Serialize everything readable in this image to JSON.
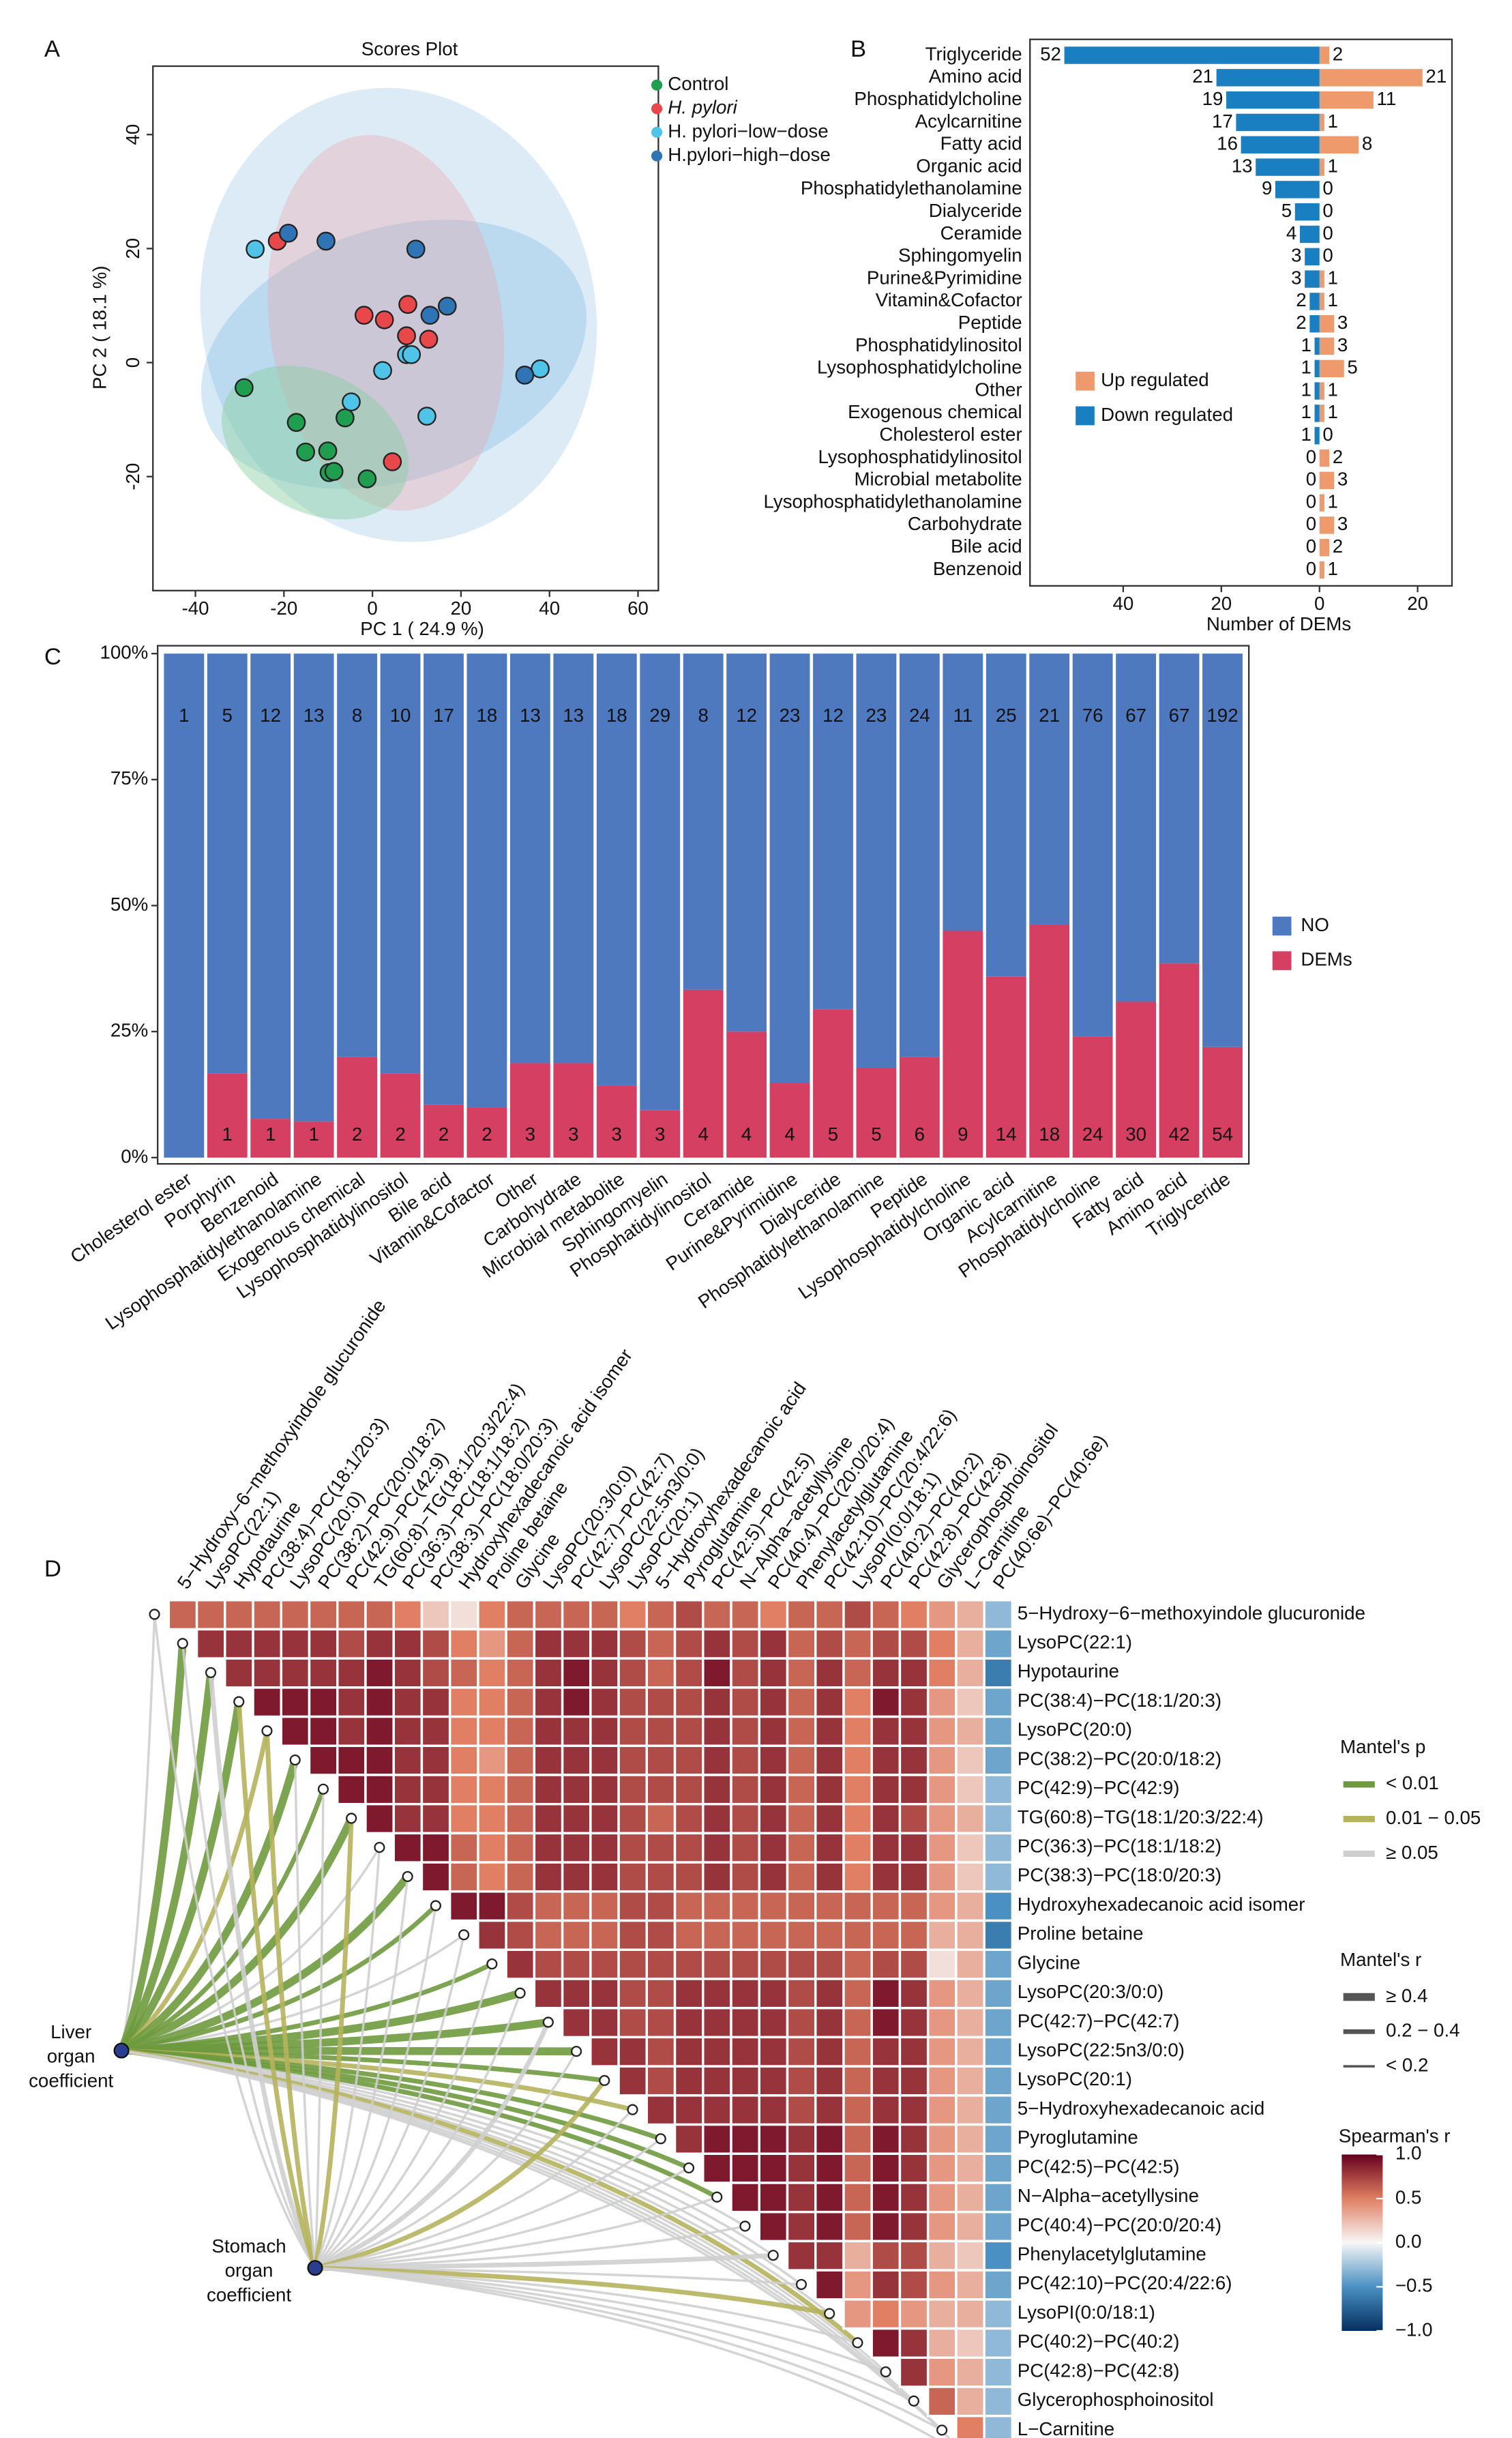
{
  "panel_labels": [
    "A",
    "B",
    "C",
    "D"
  ],
  "chart_data": [
    {
      "type": "scatter",
      "title": "Scores Plot",
      "xlabel": "PC 1 ( 24.9 %)",
      "ylabel": "PC 2 ( 18.1 %)",
      "xlim": [
        -49.6,
        64.6
      ],
      "ylim": [
        -40,
        52
      ],
      "xticks": [
        -40,
        -20,
        0,
        20,
        40,
        60
      ],
      "yticks": [
        -20,
        0,
        20,
        40
      ],
      "series": [
        {
          "name": "Control",
          "color": "#1f9e4f",
          "x": [
            -29,
            -17.2,
            -15.1,
            -10.1,
            -9.8,
            -8.7,
            -6.2,
            -1.2
          ],
          "values": [
            -4.4,
            -10.5,
            -15.7,
            -15.5,
            -19.3,
            -19.1,
            -9.7,
            -20.4
          ]
        },
        {
          "name": "H. pylori",
          "color": "#e8484a",
          "x": [
            -21.5,
            -1.9,
            2.7,
            8.0,
            7.7,
            4.5,
            12.7
          ],
          "values": [
            21.3,
            8.3,
            7.5,
            10.2,
            4.7,
            -17.4,
            4.1
          ]
        },
        {
          "name": "H. pylori−low−dose",
          "color": "#4fc3e8",
          "x": [
            -26.5,
            -4.8,
            2.3,
            7.7,
            8.8,
            12.3,
            37.9
          ],
          "values": [
            19.9,
            -6.9,
            -1.4,
            1.4,
            1.4,
            -9.4,
            -1.1
          ]
        },
        {
          "name": "H.pylori−high−dose",
          "color": "#2f74b5",
          "x": [
            -19.0,
            -10.5,
            9.8,
            13.0,
            16.9,
            34.4
          ],
          "values": [
            22.7,
            21.3,
            19.9,
            8.3,
            9.9,
            -2.2
          ]
        }
      ]
    },
    {
      "type": "bar",
      "orientation": "horizontal",
      "xlabel": "Number of DEMs",
      "categories": [
        "Triglyceride",
        "Amino acid",
        "Phosphatidylcholine",
        "Acylcarnitine",
        "Fatty acid",
        "Organic acid",
        "Phosphatidylethanolamine",
        "Dialyceride",
        "Ceramide",
        "Sphingomyelin",
        "Purine&Pyrimidine",
        "Vitamin&Cofactor",
        "Peptide",
        "Phosphatidylinositol",
        "Lysophosphatidylcholine",
        "Other",
        "Exogenous chemical",
        "Cholesterol ester",
        "Lysophosphatidylinositol",
        "Microbial metabolite",
        "Lysophosphatidylethanolamine",
        "Carbohydrate",
        "Bile acid",
        "Benzenoid"
      ],
      "series": [
        {
          "name": "Up regulated",
          "color": "#ee9a6c",
          "values": [
            2,
            21,
            11,
            1,
            8,
            1,
            0,
            0,
            0,
            0,
            1,
            1,
            3,
            3,
            5,
            1,
            1,
            0,
            2,
            3,
            1,
            3,
            2,
            1
          ]
        },
        {
          "name": "Down regulated",
          "color": "#1a7fc1",
          "values": [
            -52,
            -21,
            -19,
            -17,
            -16,
            -13,
            -9,
            -5,
            -4,
            -3,
            -3,
            -2,
            -2,
            -1,
            -1,
            -1,
            -1,
            -1,
            0,
            0,
            0,
            0,
            0,
            0
          ],
          "value_labels": [
            "52",
            "21",
            "19",
            "17",
            "16",
            "13",
            "9",
            "5",
            "4",
            "3",
            "3",
            "2",
            "2",
            "1",
            "1",
            "1",
            "1",
            "1",
            "0",
            "0",
            "0",
            "0",
            "0",
            "0"
          ]
        }
      ],
      "xlim": [
        -59,
        27
      ],
      "xticks": [
        {
          "value": -40,
          "label": "40"
        },
        {
          "value": -20,
          "label": "20"
        },
        0,
        20
      ]
    },
    {
      "type": "bar",
      "stacking": "percent",
      "categories": [
        "Cholesterol ester",
        "Porphyrin",
        "Benzenoid",
        "Lysophosphatidylethanolamine",
        "Exogenous chemical",
        "Lysophosphatidylinositol",
        "Bile acid",
        "Vitamin&Cofactor",
        "Other",
        "Carbohydrate",
        "Microbial metabolite",
        "Sphingomyelin",
        "Phosphatidylinositol",
        "Ceramide",
        "Purine&Pyrimidine",
        "Dialyceride",
        "Phosphatidylethanolamine",
        "Peptide",
        "Lysophosphatidylcholine",
        "Organic acid",
        "Acylcarnitine",
        "Phosphatidylcholine",
        "Fatty acid",
        "Amino acid",
        "Triglyceride"
      ],
      "series": [
        {
          "name": "NO",
          "color": "#4e79bf",
          "values": [
            1,
            5,
            12,
            13,
            8,
            10,
            17,
            18,
            13,
            13,
            18,
            29,
            8,
            12,
            23,
            12,
            23,
            24,
            11,
            25,
            21,
            76,
            67,
            67,
            192
          ]
        },
        {
          "name": "DEMs",
          "color": "#d43f62",
          "values": [
            0,
            1,
            1,
            1,
            2,
            2,
            2,
            2,
            3,
            3,
            3,
            3,
            4,
            4,
            4,
            5,
            5,
            6,
            9,
            14,
            18,
            24,
            30,
            42,
            54
          ]
        }
      ],
      "ylim": [
        0,
        100
      ],
      "yticks": [
        {
          "value": 0,
          "label": "0%"
        },
        {
          "value": 25,
          "label": "25%"
        },
        {
          "value": 50,
          "label": "50%"
        },
        {
          "value": 75,
          "label": "75%"
        },
        {
          "value": 100,
          "label": "100%"
        }
      ]
    },
    {
      "type": "heatmap",
      "metabolites": [
        "5−Hydroxy−6−methoxyindole glucuronide",
        "LysoPC(22:1)",
        "Hypotaurine",
        "PC(38:4)−PC(18:1/20:3)",
        "LysoPC(20:0)",
        "PC(38:2)−PC(20:0/18:2)",
        "PC(42:9)−PC(42:9)",
        "TG(60:8)−TG(18:1/20:3/22:4)",
        "PC(36:3)−PC(18:1/18:2)",
        "PC(38:3)−PC(18:0/20:3)",
        "Hydroxyhexadecanoic acid isomer",
        "Proline betaine",
        "Glycine",
        "LysoPC(20:3/0:0)",
        "PC(42:7)−PC(42:7)",
        "LysoPC(22:5n3/0:0)",
        "LysoPC(20:1)",
        "5−Hydroxyhexadecanoic acid",
        "Pyroglutamine",
        "PC(42:5)−PC(42:5)",
        "N−Alpha−acetyllysine",
        "PC(40:4)−PC(20:0/20:4)",
        "Phenylacetylglutamine",
        "PC(42:10)−PC(20:4/22:6)",
        "LysoPI(0:0/18:1)",
        "PC(40:2)−PC(40:2)",
        "PC(42:8)−PC(42:8)",
        "Glycerophosphoinositol",
        "L−Carnitine",
        "PC(40:6e)−PC(40:6e)"
      ],
      "values": [
        [
          0.6,
          0.6,
          0.6,
          0.6,
          0.6,
          0.6,
          0.6,
          0.6,
          0.5,
          0.2,
          0.1,
          0.5,
          0.6,
          0.6,
          0.6,
          0.6,
          0.5,
          0.6,
          0.7,
          0.6,
          0.6,
          0.5,
          0.6,
          0.6,
          0.7,
          0.6,
          0.5,
          0.4,
          0.3,
          -0.3
        ],
        [
          0.8,
          0.8,
          0.8,
          0.8,
          0.8,
          0.7,
          0.8,
          0.8,
          0.7,
          0.5,
          0.4,
          0.6,
          0.8,
          0.8,
          0.8,
          0.7,
          0.6,
          0.7,
          0.8,
          0.7,
          0.8,
          0.6,
          0.7,
          0.6,
          0.7,
          0.7,
          0.5,
          0.3,
          -0.4
        ],
        [
          0.8,
          0.8,
          0.8,
          0.8,
          0.8,
          0.9,
          0.8,
          0.7,
          0.6,
          0.5,
          0.6,
          0.8,
          0.9,
          0.8,
          0.7,
          0.6,
          0.7,
          0.9,
          0.7,
          0.8,
          0.6,
          0.8,
          0.6,
          0.8,
          0.8,
          0.5,
          0.3,
          -0.6
        ],
        [
          0.9,
          0.9,
          0.9,
          0.8,
          0.9,
          0.8,
          0.8,
          0.5,
          0.5,
          0.6,
          0.8,
          0.9,
          0.8,
          0.7,
          0.7,
          0.7,
          0.8,
          0.7,
          0.8,
          0.6,
          0.8,
          0.5,
          0.9,
          0.8,
          0.4,
          0.2,
          -0.4
        ],
        [
          0.9,
          0.9,
          0.8,
          0.9,
          0.8,
          0.8,
          0.5,
          0.5,
          0.6,
          0.8,
          0.8,
          0.8,
          0.7,
          0.7,
          0.7,
          0.8,
          0.7,
          0.8,
          0.6,
          0.8,
          0.5,
          0.8,
          0.8,
          0.4,
          0.3,
          -0.4
        ],
        [
          0.9,
          0.9,
          0.9,
          0.8,
          0.8,
          0.5,
          0.4,
          0.6,
          0.8,
          0.8,
          0.8,
          0.7,
          0.7,
          0.7,
          0.8,
          0.7,
          0.8,
          0.6,
          0.8,
          0.5,
          0.8,
          0.8,
          0.4,
          0.2,
          -0.4
        ],
        [
          0.9,
          0.9,
          0.8,
          0.8,
          0.5,
          0.5,
          0.6,
          0.8,
          0.8,
          0.8,
          0.7,
          0.7,
          0.7,
          0.8,
          0.7,
          0.8,
          0.6,
          0.8,
          0.5,
          0.8,
          0.8,
          0.4,
          0.2,
          -0.3
        ],
        [
          0.9,
          0.8,
          0.8,
          0.5,
          0.5,
          0.6,
          0.8,
          0.8,
          0.8,
          0.7,
          0.6,
          0.7,
          0.8,
          0.7,
          0.8,
          0.6,
          0.8,
          0.5,
          0.8,
          0.7,
          0.4,
          0.3,
          -0.3
        ],
        [
          0.9,
          0.9,
          0.6,
          0.5,
          0.6,
          0.8,
          0.8,
          0.8,
          0.7,
          0.7,
          0.7,
          0.8,
          0.7,
          0.8,
          0.6,
          0.8,
          0.5,
          0.8,
          0.8,
          0.4,
          0.2,
          -0.3
        ],
        [
          0.9,
          0.6,
          0.5,
          0.6,
          0.8,
          0.8,
          0.8,
          0.7,
          0.7,
          0.7,
          0.8,
          0.7,
          0.8,
          0.6,
          0.8,
          0.5,
          0.8,
          0.8,
          0.4,
          0.2,
          -0.3
        ],
        [
          0.9,
          0.9,
          0.7,
          0.6,
          0.6,
          0.6,
          0.7,
          0.7,
          0.6,
          0.6,
          0.6,
          0.6,
          0.6,
          0.6,
          0.6,
          0.6,
          0.6,
          0.4,
          0.3,
          -0.5
        ],
        [
          0.8,
          0.7,
          0.6,
          0.6,
          0.6,
          0.7,
          0.7,
          0.6,
          0.6,
          0.6,
          0.6,
          0.6,
          0.6,
          0.6,
          0.6,
          0.6,
          0.3,
          0.3,
          -0.6
        ],
        [
          0.8,
          0.7,
          0.7,
          0.7,
          0.7,
          0.7,
          0.7,
          0.7,
          0.7,
          0.7,
          0.7,
          0.7,
          0.6,
          0.7,
          0.7,
          0.1,
          0.3,
          -0.4
        ],
        [
          0.8,
          0.8,
          0.8,
          0.7,
          0.7,
          0.8,
          0.8,
          0.8,
          0.8,
          0.7,
          0.8,
          0.6,
          0.9,
          0.8,
          0.4,
          0.3,
          -0.4
        ],
        [
          0.8,
          0.8,
          0.7,
          0.7,
          0.8,
          0.8,
          0.8,
          0.8,
          0.7,
          0.8,
          0.6,
          0.9,
          0.8,
          0.4,
          0.3,
          -0.4
        ],
        [
          0.8,
          0.8,
          0.7,
          0.8,
          0.8,
          0.8,
          0.8,
          0.7,
          0.8,
          0.6,
          0.8,
          0.8,
          0.4,
          0.3,
          -0.4
        ],
        [
          0.8,
          0.7,
          0.8,
          0.8,
          0.8,
          0.8,
          0.7,
          0.8,
          0.6,
          0.8,
          0.8,
          0.4,
          0.3,
          -0.4
        ],
        [
          0.8,
          0.8,
          0.8,
          0.8,
          0.8,
          0.7,
          0.8,
          0.6,
          0.8,
          0.8,
          0.4,
          0.3,
          -0.4
        ],
        [
          0.8,
          0.9,
          0.9,
          0.9,
          0.8,
          0.9,
          0.6,
          0.9,
          0.8,
          0.4,
          0.3,
          -0.4
        ],
        [
          0.9,
          0.9,
          0.9,
          0.8,
          0.9,
          0.6,
          0.9,
          0.8,
          0.4,
          0.3,
          -0.4
        ],
        [
          0.9,
          0.9,
          0.8,
          0.9,
          0.6,
          0.9,
          0.8,
          0.4,
          0.3,
          -0.4
        ],
        [
          0.9,
          0.8,
          0.9,
          0.6,
          0.9,
          0.8,
          0.4,
          0.3,
          -0.4
        ],
        [
          0.8,
          0.8,
          0.3,
          0.7,
          0.7,
          0.3,
          0.2,
          -0.5
        ],
        [
          0.9,
          0.4,
          0.8,
          0.7,
          0.4,
          0.3,
          -0.4
        ],
        [
          0.4,
          0.5,
          0.4,
          0.3,
          0.3,
          -0.3
        ],
        [
          0.9,
          0.8,
          0.3,
          0.2,
          -0.3
        ],
        [
          0.8,
          0.4,
          0.3,
          -0.3
        ],
        [
          0.6,
          0.3,
          -0.3
        ],
        [
          0.5,
          -0.3
        ]
      ],
      "clim": [
        -1,
        1
      ],
      "colors": [
        "#053061",
        "#4a90c2",
        "#f7f7f7",
        "#e07f63",
        "#67001f"
      ],
      "colorbar_title": "Spearman's r",
      "colorbar_ticks": [
        {
          "value": 1,
          "label": "1.0"
        },
        {
          "value": 0.5,
          "label": "0.5"
        },
        {
          "value": 0,
          "label": "0.0"
        },
        {
          "value": -0.5,
          "label": "−0.5"
        },
        {
          "value": -1,
          "label": "−1.0"
        }
      ],
      "mantel": {
        "p_title": "Mantel's p",
        "p_classes": [
          {
            "label": "< 0.01",
            "color": "#6e9a3e"
          },
          {
            "label": "0.01 − 0.05",
            "color": "#b5b35c"
          },
          {
            "label": "≥ 0.05",
            "color": "#cfcfcf"
          }
        ],
        "r_title": "Mantel's r",
        "r_classes": [
          {
            "label": "≥ 0.4",
            "width": 5
          },
          {
            "label": "0.2 − 0.4",
            "width": 3
          },
          {
            "label": "< 0.2",
            "width": 1.5
          }
        ],
        "sources": [
          {
            "name": [
              "Liver",
              "organ",
              "coefficient"
            ],
            "p": [
              2,
              0,
              0,
              0,
              1,
              0,
              0,
              0,
              2,
              0,
              0,
              2,
              0,
              0,
              0,
              0,
              0,
              1,
              0,
              0,
              0,
              2,
              2,
              2,
              2,
              1,
              2,
              2,
              2,
              2
            ],
            "r": [
              2,
              0,
              0,
              0,
              1,
              0,
              1,
              0,
              2,
              0,
              1,
              2,
              1,
              0,
              0,
              0,
              1,
              1,
              1,
              1,
              1,
              2,
              2,
              2,
              2,
              1,
              2,
              2,
              2,
              2
            ]
          },
          {
            "name": [
              "Stomach",
              "organ",
              "coefficient"
            ],
            "p": [
              2,
              2,
              2,
              1,
              1,
              2,
              2,
              1,
              2,
              2,
              2,
              2,
              2,
              2,
              2,
              2,
              1,
              2,
              2,
              2,
              2,
              2,
              2,
              2,
              1,
              2,
              2,
              2,
              2,
              2
            ],
            "r": [
              2,
              2,
              1,
              1,
              1,
              2,
              2,
              1,
              2,
              2,
              2,
              2,
              2,
              2,
              1,
              2,
              1,
              2,
              2,
              2,
              2,
              2,
              1,
              2,
              1,
              2,
              2,
              2,
              2,
              2
            ]
          }
        ]
      }
    }
  ]
}
